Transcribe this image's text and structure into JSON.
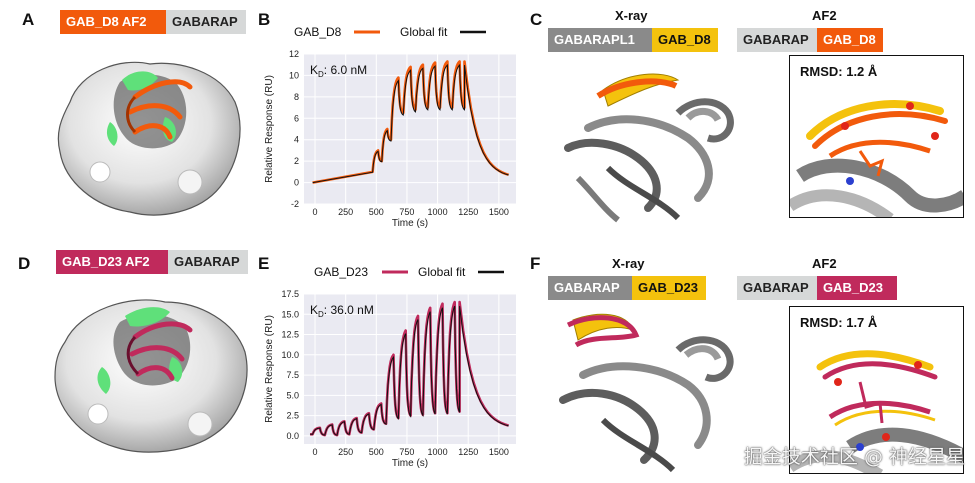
{
  "panels": {
    "A": {
      "letter": "A",
      "tag_binder": "GAB_D8 AF2",
      "tag_target": "GABARAP"
    },
    "B": {
      "letter": "B"
    },
    "C": {
      "letter": "C",
      "xray_title": "X-ray",
      "af2_title": "AF2",
      "xray_tag_target": "GABARAPL1",
      "xray_tag_binder": "GAB_D8",
      "af2_tag_target": "GABARAP",
      "af2_tag_binder": "GAB_D8",
      "rmsd": "RMSD: 1.2 Å"
    },
    "D": {
      "letter": "D",
      "tag_binder": "GAB_D23 AF2",
      "tag_target": "GABARAP"
    },
    "E": {
      "letter": "E"
    },
    "F": {
      "letter": "F",
      "xray_title": "X-ray",
      "af2_title": "AF2",
      "xray_tag_target": "GABARAP",
      "xray_tag_binder": "GAB_D23",
      "af2_tag_target": "GABARAP",
      "af2_tag_binder": "GAB_D23",
      "rmsd": "RMSD: 1.7 Å"
    }
  },
  "colors": {
    "orange": "#F25A0C",
    "magenta": "#C02A5C",
    "yellow": "#F4C20D",
    "fit": "#111111",
    "green": "#5FE07A"
  },
  "watermark": "掘金技术社区 @ 神经星星",
  "chart_data": [
    {
      "id": "B",
      "type": "line",
      "legend": [
        "GAB_D8",
        "Global fit"
      ],
      "kd_label": "K",
      "kd_sub": "D",
      "kd_value": ": 6.0 nM",
      "xlabel": "Time (s)",
      "ylabel": "Relative Response (RU)",
      "xlim": [
        -90,
        1640
      ],
      "ylim": [
        -2,
        12
      ],
      "xticks": [
        0,
        250,
        500,
        750,
        1000,
        1250,
        1500
      ],
      "yticks": [
        -2,
        0,
        2,
        4,
        6,
        8,
        10,
        12
      ],
      "injections": [
        {
          "start": 470,
          "end": 545,
          "peak": 3.0,
          "tail": 2.0
        },
        {
          "start": 545,
          "end": 620,
          "peak": 5.0,
          "tail": 4.0
        },
        {
          "start": 620,
          "end": 720,
          "peak": 9.8,
          "tail": 6.5
        },
        {
          "start": 720,
          "end": 820,
          "peak": 10.8,
          "tail": 6.8
        },
        {
          "start": 820,
          "end": 920,
          "peak": 11.0,
          "tail": 7.0
        },
        {
          "start": 920,
          "end": 1020,
          "peak": 11.2,
          "tail": 7.0
        },
        {
          "start": 1020,
          "end": 1120,
          "peak": 11.3,
          "tail": 7.0
        },
        {
          "start": 1120,
          "end": 1220,
          "peak": 11.3,
          "tail": 7.0
        }
      ],
      "dissociation": {
        "start": 1220,
        "end": 1580,
        "from": 11.3,
        "to": 0.4
      },
      "baseline": {
        "start": -20,
        "end": 470,
        "from": 0.0,
        "to": 1.0
      }
    },
    {
      "id": "E",
      "type": "line",
      "legend": [
        "GAB_D23",
        "Global fit"
      ],
      "kd_label": "K",
      "kd_sub": "D",
      "kd_value": ": 36.0 nM",
      "xlabel": "Time (s)",
      "ylabel": "Relative Response (RU)",
      "xlim": [
        -90,
        1640
      ],
      "ylim": [
        -1,
        17.5
      ],
      "xticks": [
        0,
        250,
        500,
        750,
        1000,
        1250,
        1500
      ],
      "yticks": [
        0.0,
        2.5,
        5.0,
        7.5,
        10.0,
        12.5,
        15.0,
        17.5
      ],
      "injections": [
        {
          "start": -20,
          "end": 80,
          "peak": 1.0,
          "tail": 0.1
        },
        {
          "start": 80,
          "end": 180,
          "peak": 1.4,
          "tail": 0.1
        },
        {
          "start": 180,
          "end": 280,
          "peak": 1.8,
          "tail": 0.2
        },
        {
          "start": 280,
          "end": 380,
          "peak": 2.2,
          "tail": 0.4
        },
        {
          "start": 380,
          "end": 480,
          "peak": 2.8,
          "tail": 0.8
        },
        {
          "start": 480,
          "end": 580,
          "peak": 4.0,
          "tail": 1.5
        },
        {
          "start": 580,
          "end": 680,
          "peak": 10.0,
          "tail": 2.2
        },
        {
          "start": 680,
          "end": 780,
          "peak": 13.0,
          "tail": 2.5
        },
        {
          "start": 780,
          "end": 880,
          "peak": 14.8,
          "tail": 2.6
        },
        {
          "start": 880,
          "end": 980,
          "peak": 15.8,
          "tail": 2.8
        },
        {
          "start": 980,
          "end": 1080,
          "peak": 16.3,
          "tail": 2.8
        },
        {
          "start": 1080,
          "end": 1180,
          "peak": 16.5,
          "tail": 3.0
        }
      ],
      "dissociation": {
        "start": 1180,
        "end": 1580,
        "from": 16.5,
        "to": 0.8
      },
      "baseline": {
        "start": -40,
        "end": -20,
        "from": 0.2,
        "to": 0.2
      }
    }
  ]
}
